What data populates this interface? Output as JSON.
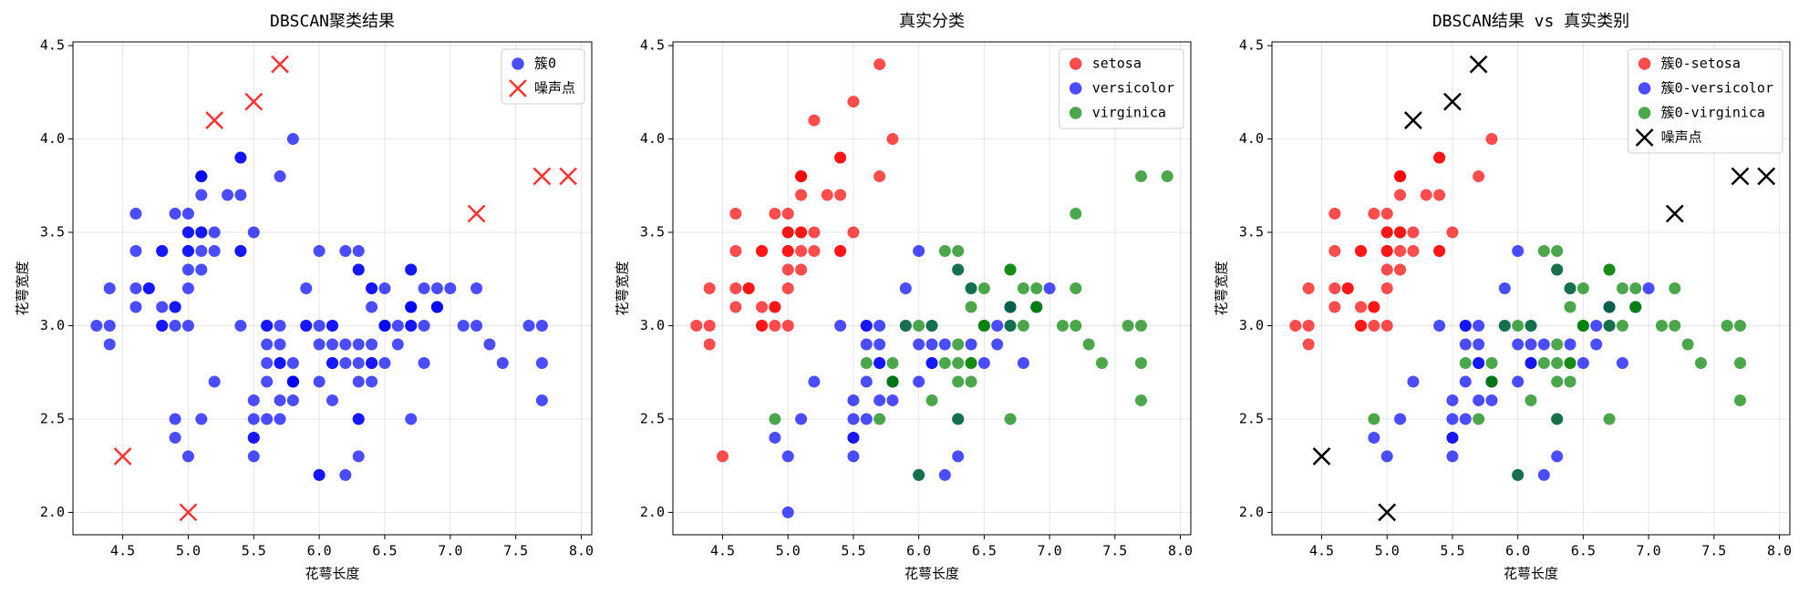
{
  "chart_data": [
    {
      "type": "scatter",
      "title": "DBSCAN聚类结果",
      "xlabel": "花萼长度",
      "ylabel": "花萼宽度",
      "xlim": [
        4.12,
        8.08
      ],
      "ylim": [
        1.88,
        4.52
      ],
      "xticks": [
        4.5,
        {
          "value": 5,
          "label": "5.0"
        },
        5.5,
        {
          "value": 6,
          "label": "6.0"
        },
        6.5,
        {
          "value": 7,
          "label": "7.0"
        },
        7.5,
        {
          "value": 8,
          "label": "8.0"
        }
      ],
      "yticks": [
        {
          "value": 2,
          "label": "2.0"
        },
        2.5,
        {
          "value": 3,
          "label": "3.0"
        },
        3.5,
        {
          "value": 4,
          "label": "4.0"
        },
        4.5
      ],
      "grid": true,
      "legend": "upper right",
      "series": [
        {
          "name": "簇0",
          "color": "blue",
          "marker": "o",
          "alpha": 0.7,
          "x": [
            5.1,
            4.9,
            4.7,
            4.6,
            5.0,
            5.4,
            4.6,
            5.0,
            4.4,
            4.9,
            5.4,
            4.8,
            4.8,
            4.3,
            5.8,
            5.4,
            5.1,
            5.7,
            5.1,
            5.4,
            5.1,
            4.6,
            5.1,
            4.8,
            5.0,
            5.0,
            5.2,
            5.2,
            4.7,
            4.8,
            5.4,
            4.9,
            5.0,
            5.5,
            4.9,
            4.4,
            5.1,
            5.0,
            4.4,
            5.0,
            5.1,
            4.8,
            5.1,
            4.6,
            5.3,
            5.0,
            7.0,
            6.4,
            6.9,
            5.5,
            6.5,
            5.7,
            6.3,
            4.9,
            6.6,
            5.2,
            5.9,
            6.0,
            6.1,
            5.6,
            6.7,
            5.6,
            5.8,
            6.2,
            5.6,
            5.9,
            6.1,
            6.3,
            6.1,
            6.4,
            6.6,
            6.8,
            6.7,
            6.0,
            5.7,
            5.5,
            5.5,
            5.8,
            6.0,
            5.4,
            6.0,
            6.7,
            6.3,
            5.6,
            5.5,
            5.5,
            6.1,
            5.8,
            5.0,
            5.6,
            5.7,
            5.7,
            6.2,
            5.1,
            5.7,
            6.3,
            5.8,
            7.1,
            6.3,
            6.5,
            7.6,
            4.9,
            7.3,
            6.7,
            6.5,
            6.4,
            6.8,
            5.7,
            5.8,
            6.4,
            6.5,
            7.7,
            6.0,
            6.9,
            5.6,
            7.7,
            6.3,
            6.7,
            7.2,
            6.2,
            6.1,
            6.4,
            7.2,
            7.4,
            6.4,
            6.3,
            6.1,
            7.7,
            6.3,
            6.4,
            6.0,
            6.9,
            6.7,
            6.9,
            5.8,
            6.8,
            6.7,
            6.7,
            6.3,
            6.5,
            6.2,
            5.9
          ],
          "values": [
            3.5,
            3.0,
            3.2,
            3.1,
            3.6,
            3.9,
            3.4,
            3.4,
            2.9,
            3.1,
            3.7,
            3.4,
            3.0,
            3.0,
            4.0,
            3.9,
            3.5,
            3.8,
            3.8,
            3.4,
            3.7,
            3.6,
            3.3,
            3.4,
            3.0,
            3.4,
            3.5,
            3.4,
            3.2,
            3.1,
            3.4,
            3.1,
            3.2,
            3.5,
            3.6,
            3.0,
            3.4,
            3.5,
            3.2,
            3.5,
            3.8,
            3.0,
            3.8,
            3.2,
            3.7,
            3.3,
            3.2,
            3.2,
            3.1,
            2.3,
            2.8,
            2.8,
            3.3,
            2.4,
            2.9,
            2.7,
            3.0,
            2.2,
            2.9,
            2.9,
            3.1,
            3.0,
            2.7,
            2.2,
            2.5,
            3.2,
            2.8,
            2.5,
            2.8,
            2.9,
            3.0,
            2.8,
            3.0,
            2.9,
            2.6,
            2.4,
            2.4,
            2.7,
            2.7,
            3.0,
            3.4,
            3.1,
            2.3,
            3.0,
            2.5,
            2.6,
            3.0,
            2.6,
            2.3,
            2.7,
            3.0,
            2.9,
            2.9,
            2.5,
            2.8,
            3.3,
            2.7,
            3.0,
            2.9,
            3.0,
            3.0,
            2.5,
            2.9,
            2.5,
            3.2,
            2.7,
            3.0,
            2.5,
            2.8,
            3.2,
            3.0,
            2.6,
            2.2,
            3.2,
            2.8,
            2.8,
            2.7,
            3.3,
            3.2,
            2.8,
            3.0,
            2.8,
            3.0,
            2.8,
            2.8,
            2.8,
            2.6,
            3.0,
            3.4,
            3.1,
            3.0,
            3.1,
            3.1,
            3.1,
            2.7,
            3.2,
            3.3,
            3.0,
            2.5,
            3.0,
            3.4,
            3.0
          ]
        },
        {
          "name": "噪声点",
          "color": "red",
          "marker": "x",
          "alpha": 0.8,
          "x": [
            4.5,
            5.0,
            5.2,
            5.5,
            5.7,
            7.2,
            7.7,
            7.9
          ],
          "values": [
            2.3,
            2.0,
            4.1,
            4.2,
            4.4,
            3.6,
            3.8,
            3.8
          ]
        }
      ]
    },
    {
      "type": "scatter",
      "title": "真实分类",
      "xlabel": "花萼长度",
      "ylabel": "花萼宽度",
      "xlim": [
        4.12,
        8.08
      ],
      "ylim": [
        1.88,
        4.52
      ],
      "xticks": [
        4.5,
        {
          "value": 5,
          "label": "5.0"
        },
        5.5,
        {
          "value": 6,
          "label": "6.0"
        },
        6.5,
        {
          "value": 7,
          "label": "7.0"
        },
        7.5,
        {
          "value": 8,
          "label": "8.0"
        }
      ],
      "yticks": [
        {
          "value": 2,
          "label": "2.0"
        },
        2.5,
        {
          "value": 3,
          "label": "3.0"
        },
        3.5,
        {
          "value": 4,
          "label": "4.0"
        },
        4.5
      ],
      "grid": true,
      "legend": "upper right",
      "series": [
        {
          "name": "setosa",
          "color": "red",
          "marker": "o",
          "alpha": 0.7,
          "x": [
            5.1,
            4.9,
            4.7,
            4.6,
            5.0,
            5.4,
            4.6,
            5.0,
            4.4,
            4.9,
            5.4,
            4.8,
            4.8,
            4.3,
            5.8,
            5.7,
            5.4,
            5.1,
            5.7,
            5.1,
            5.4,
            5.1,
            4.6,
            5.1,
            4.8,
            5.0,
            5.0,
            5.2,
            5.2,
            4.7,
            4.8,
            5.4,
            5.2,
            5.5,
            4.9,
            5.0,
            5.5,
            4.9,
            4.4,
            5.1,
            5.0,
            4.5,
            4.4,
            5.0,
            5.1,
            4.8,
            5.1,
            4.6,
            5.3,
            5.0
          ],
          "values": [
            3.5,
            3.0,
            3.2,
            3.1,
            3.6,
            3.9,
            3.4,
            3.4,
            2.9,
            3.1,
            3.7,
            3.4,
            3.0,
            3.0,
            4.0,
            4.4,
            3.9,
            3.5,
            3.8,
            3.8,
            3.4,
            3.7,
            3.6,
            3.3,
            3.4,
            3.0,
            3.4,
            3.5,
            3.4,
            3.2,
            3.1,
            3.4,
            4.1,
            4.2,
            3.1,
            3.2,
            3.5,
            3.6,
            3.0,
            3.4,
            3.5,
            2.3,
            3.2,
            3.5,
            3.8,
            3.0,
            3.8,
            3.2,
            3.7,
            3.3
          ]
        },
        {
          "name": "versicolor",
          "color": "blue",
          "marker": "o",
          "alpha": 0.7,
          "x": [
            7.0,
            6.4,
            6.9,
            5.5,
            6.5,
            5.7,
            6.3,
            4.9,
            6.6,
            5.2,
            5.0,
            5.9,
            6.0,
            6.1,
            5.6,
            6.7,
            5.6,
            5.8,
            6.2,
            5.6,
            5.9,
            6.1,
            6.3,
            6.1,
            6.4,
            6.6,
            6.8,
            6.7,
            6.0,
            5.7,
            5.5,
            5.5,
            5.8,
            6.0,
            5.4,
            6.0,
            6.7,
            6.3,
            5.6,
            5.5,
            5.5,
            6.1,
            5.8,
            5.0,
            5.6,
            5.7,
            5.7,
            6.2,
            5.1,
            5.7
          ],
          "values": [
            3.2,
            3.2,
            3.1,
            2.3,
            2.8,
            2.8,
            3.3,
            2.4,
            2.9,
            2.7,
            2.0,
            3.0,
            2.2,
            2.9,
            2.9,
            3.1,
            3.0,
            2.7,
            2.2,
            2.5,
            3.2,
            2.8,
            2.5,
            2.8,
            2.9,
            3.0,
            2.8,
            3.0,
            2.9,
            2.6,
            2.4,
            2.4,
            2.7,
            2.7,
            3.0,
            3.4,
            3.1,
            2.3,
            3.0,
            2.5,
            2.6,
            3.0,
            2.6,
            2.3,
            2.7,
            3.0,
            2.9,
            2.9,
            2.5,
            2.8
          ]
        },
        {
          "name": "virginica",
          "color": "green",
          "marker": "o",
          "alpha": 0.7,
          "x": [
            6.3,
            5.8,
            7.1,
            6.3,
            6.5,
            7.6,
            4.9,
            7.3,
            6.7,
            7.2,
            6.5,
            6.4,
            6.8,
            5.7,
            5.8,
            6.4,
            6.5,
            7.7,
            7.7,
            6.0,
            6.9,
            5.6,
            7.7,
            6.3,
            6.7,
            7.2,
            6.2,
            6.1,
            6.4,
            7.2,
            7.4,
            7.9,
            6.4,
            6.3,
            6.1,
            7.7,
            6.3,
            6.4,
            6.0,
            6.9,
            6.7,
            6.9,
            5.8,
            6.8,
            6.7,
            6.7,
            6.3,
            6.5,
            6.2,
            5.9
          ],
          "values": [
            3.3,
            2.7,
            3.0,
            2.9,
            3.0,
            3.0,
            2.5,
            2.9,
            2.5,
            3.6,
            3.2,
            2.7,
            3.0,
            2.5,
            2.8,
            3.2,
            3.0,
            3.8,
            2.6,
            2.2,
            3.2,
            2.8,
            2.8,
            2.7,
            3.3,
            3.2,
            2.8,
            3.0,
            2.8,
            3.0,
            2.8,
            3.8,
            2.8,
            2.8,
            2.6,
            3.0,
            3.4,
            3.1,
            3.0,
            3.1,
            3.1,
            3.1,
            2.7,
            3.2,
            3.3,
            3.0,
            2.5,
            3.0,
            3.4,
            3.0
          ]
        }
      ]
    },
    {
      "type": "scatter",
      "title": "DBSCAN结果 vs 真实类别",
      "xlabel": "花萼长度",
      "ylabel": "花萼宽度",
      "xlim": [
        4.12,
        8.08
      ],
      "ylim": [
        1.88,
        4.52
      ],
      "xticks": [
        4.5,
        {
          "value": 5,
          "label": "5.0"
        },
        5.5,
        {
          "value": 6,
          "label": "6.0"
        },
        6.5,
        {
          "value": 7,
          "label": "7.0"
        },
        7.5,
        {
          "value": 8,
          "label": "8.0"
        }
      ],
      "yticks": [
        {
          "value": 2,
          "label": "2.0"
        },
        2.5,
        {
          "value": 3,
          "label": "3.0"
        },
        3.5,
        {
          "value": 4,
          "label": "4.0"
        },
        4.5
      ],
      "grid": true,
      "legend": "upper right",
      "series": [
        {
          "name": "簇0-setosa",
          "color": "red",
          "marker": "o",
          "alpha": 0.7,
          "x": [
            5.1,
            4.9,
            4.7,
            4.6,
            5.0,
            5.4,
            4.6,
            5.0,
            4.4,
            4.9,
            5.4,
            4.8,
            4.8,
            4.3,
            5.8,
            5.4,
            5.1,
            5.7,
            5.1,
            5.4,
            5.1,
            4.6,
            5.1,
            4.8,
            5.0,
            5.0,
            5.2,
            5.2,
            4.7,
            4.8,
            5.4,
            4.9,
            5.0,
            5.5,
            4.9,
            4.4,
            5.1,
            5.0,
            4.4,
            5.0,
            5.1,
            4.8,
            5.1,
            4.6,
            5.3,
            5.0
          ],
          "values": [
            3.5,
            3.0,
            3.2,
            3.1,
            3.6,
            3.9,
            3.4,
            3.4,
            2.9,
            3.1,
            3.7,
            3.4,
            3.0,
            3.0,
            4.0,
            3.9,
            3.5,
            3.8,
            3.8,
            3.4,
            3.7,
            3.6,
            3.3,
            3.4,
            3.0,
            3.4,
            3.5,
            3.4,
            3.2,
            3.1,
            3.4,
            3.1,
            3.2,
            3.5,
            3.6,
            3.0,
            3.4,
            3.5,
            3.2,
            3.5,
            3.8,
            3.0,
            3.8,
            3.2,
            3.7,
            3.3
          ]
        },
        {
          "name": "簇0-versicolor",
          "color": "blue",
          "marker": "o",
          "alpha": 0.7,
          "x": [
            7.0,
            6.4,
            6.9,
            5.5,
            6.5,
            5.7,
            6.3,
            4.9,
            6.6,
            5.2,
            5.9,
            6.0,
            6.1,
            5.6,
            6.7,
            5.6,
            5.8,
            6.2,
            5.6,
            5.9,
            6.1,
            6.3,
            6.1,
            6.4,
            6.6,
            6.8,
            6.7,
            6.0,
            5.7,
            5.5,
            5.5,
            5.8,
            6.0,
            5.4,
            6.0,
            6.7,
            6.3,
            5.6,
            5.5,
            5.5,
            6.1,
            5.8,
            5.0,
            5.6,
            5.7,
            5.7,
            6.2,
            5.1,
            5.7
          ],
          "values": [
            3.2,
            3.2,
            3.1,
            2.3,
            2.8,
            2.8,
            3.3,
            2.4,
            2.9,
            2.7,
            3.0,
            2.2,
            2.9,
            2.9,
            3.1,
            3.0,
            2.7,
            2.2,
            2.5,
            3.2,
            2.8,
            2.5,
            2.8,
            2.9,
            3.0,
            2.8,
            3.0,
            2.9,
            2.6,
            2.4,
            2.4,
            2.7,
            2.7,
            3.0,
            3.4,
            3.1,
            2.3,
            3.0,
            2.5,
            2.6,
            3.0,
            2.6,
            2.3,
            2.7,
            3.0,
            2.9,
            2.9,
            2.5,
            2.8
          ]
        },
        {
          "name": "簇0-virginica",
          "color": "green",
          "marker": "o",
          "alpha": 0.7,
          "x": [
            6.3,
            5.8,
            7.1,
            6.3,
            6.5,
            7.6,
            4.9,
            7.3,
            6.7,
            6.5,
            6.4,
            6.8,
            5.7,
            5.8,
            6.4,
            6.5,
            7.7,
            6.0,
            6.9,
            5.6,
            7.7,
            6.3,
            6.7,
            7.2,
            6.2,
            6.1,
            6.4,
            7.2,
            7.4,
            6.4,
            6.3,
            6.1,
            7.7,
            6.3,
            6.4,
            6.0,
            6.9,
            6.7,
            6.9,
            5.8,
            6.8,
            6.7,
            6.7,
            6.3,
            6.5,
            6.2,
            5.9
          ],
          "values": [
            3.3,
            2.7,
            3.0,
            2.9,
            3.0,
            3.0,
            2.5,
            2.9,
            2.5,
            3.2,
            2.7,
            3.0,
            2.5,
            2.8,
            3.2,
            3.0,
            2.6,
            2.2,
            3.2,
            2.8,
            2.8,
            2.7,
            3.3,
            3.2,
            2.8,
            3.0,
            2.8,
            3.0,
            2.8,
            2.8,
            2.8,
            2.6,
            3.0,
            3.4,
            3.1,
            3.0,
            3.1,
            3.1,
            3.1,
            2.7,
            3.2,
            3.3,
            3.0,
            2.5,
            3.0,
            3.4,
            3.0
          ]
        },
        {
          "name": "噪声点",
          "color": "black",
          "marker": "x",
          "alpha": 1,
          "x": [
            4.5,
            5.0,
            5.2,
            5.5,
            5.7,
            7.2,
            7.7,
            7.9
          ],
          "values": [
            2.3,
            2.0,
            4.1,
            4.2,
            4.4,
            3.6,
            3.8,
            3.8
          ]
        }
      ]
    }
  ]
}
